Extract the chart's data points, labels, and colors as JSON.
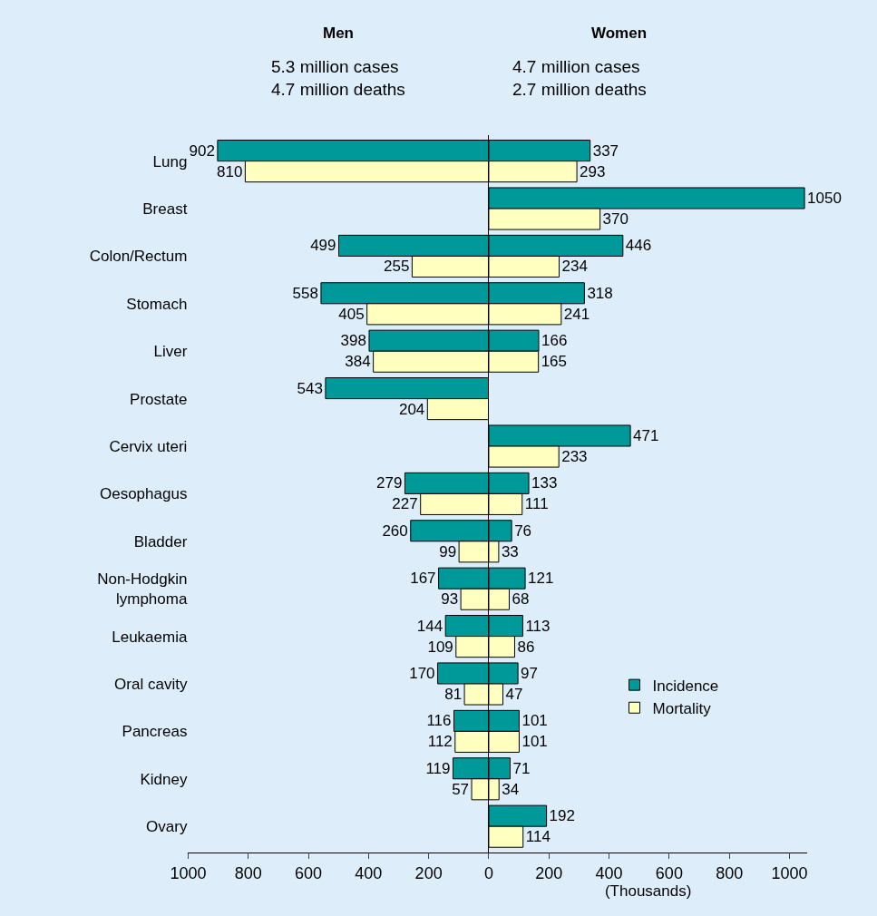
{
  "chart_data": [
    {
      "type": "bar",
      "orientation": "horizontal",
      "title": "Men",
      "subtitle": "5.3 million cases\n4.7 million deaths",
      "categories": [
        "Lung",
        "Breast",
        "Colon/Rectum",
        "Stomach",
        "Liver",
        "Prostate",
        "Cervix uteri",
        "Oesophagus",
        "Bladder",
        "Non-Hodgkin lymphoma",
        "Leukaemia",
        "Oral cavity",
        "Pancreas",
        "Kidney",
        "Ovary"
      ],
      "series": [
        {
          "color": "#009999",
          "values": [
            902,
            null,
            499,
            558,
            398,
            543,
            null,
            279,
            260,
            167,
            144,
            170,
            116,
            119,
            null
          ]
        },
        {
          "color": "#ffffc0",
          "values": [
            810,
            null,
            255,
            405,
            384,
            204,
            null,
            227,
            99,
            93,
            109,
            81,
            112,
            57,
            null
          ]
        }
      ],
      "xlim": [
        1000,
        0
      ],
      "xticks": [
        1000,
        800,
        600,
        400,
        200,
        {
          "value": 0,
          "label": null
        }
      ],
      "data_labels": true,
      "grid": false
    },
    {
      "type": "bar",
      "orientation": "horizontal",
      "title": "Women",
      "subtitle": "4.7 million cases\n2.7 million deaths",
      "xlabel": "(Thousands)",
      "categories": [
        "Lung",
        "Breast",
        "Colon/Rectum",
        "Stomach",
        "Liver",
        "Prostate",
        "Cervix uteri",
        "Oesophagus",
        "Bladder",
        "Non-Hodgkin lymphoma",
        "Leukaemia",
        "Oral cavity",
        "Pancreas",
        "Kidney",
        "Ovary"
      ],
      "series": [
        {
          "name": "Incidence",
          "color": "#009999",
          "values": [
            337,
            1050,
            446,
            318,
            166,
            null,
            471,
            133,
            76,
            121,
            113,
            97,
            101,
            71,
            192
          ]
        },
        {
          "name": "Mortality",
          "color": "#ffffc0",
          "values": [
            293,
            370,
            234,
            241,
            165,
            null,
            233,
            111,
            33,
            68,
            86,
            47,
            101,
            34,
            114
          ]
        }
      ],
      "xlim": [
        0,
        1060
      ],
      "xticks": [
        0,
        200,
        400,
        600,
        800,
        1000
      ],
      "data_labels": true,
      "tick_labels": "x",
      "grid": false,
      "legend": "bottom right"
    }
  ]
}
